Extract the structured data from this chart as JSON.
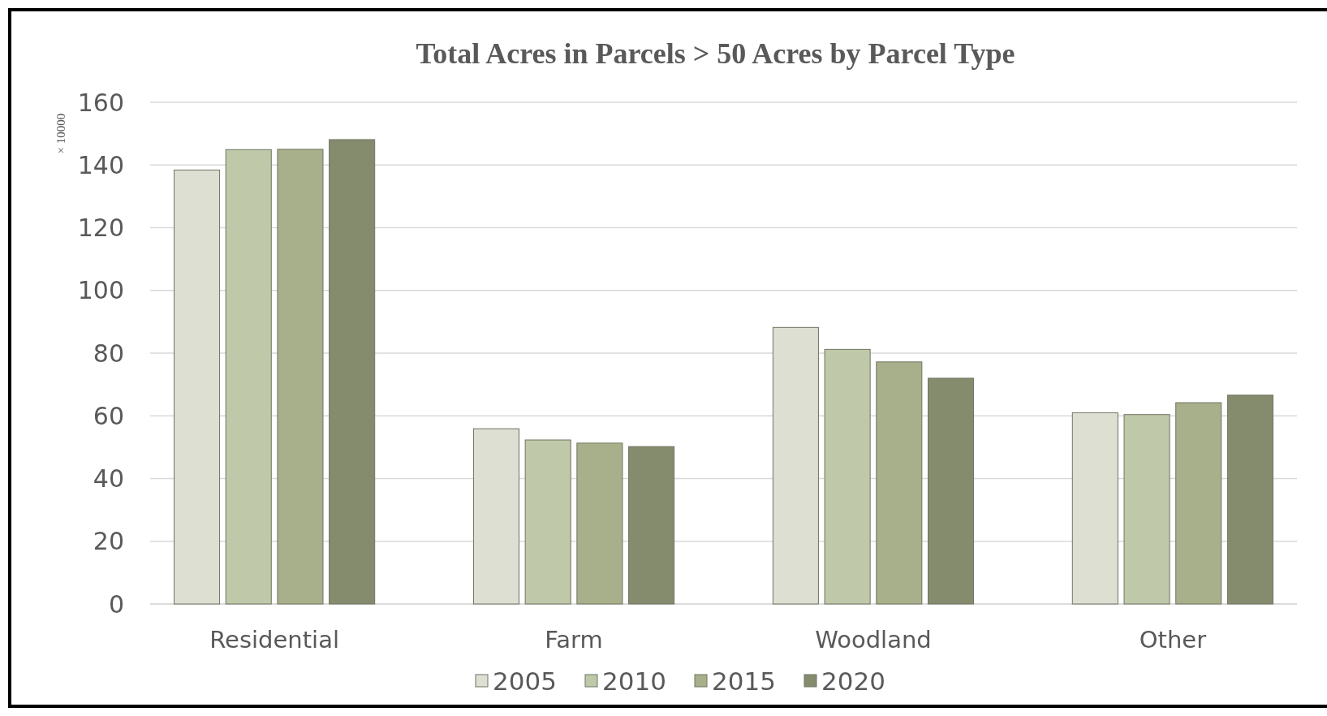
{
  "chart_data": {
    "type": "bar",
    "title": "Total Acres in Parcels > 50 Acres by Parcel Type",
    "ylabel": "× 10000",
    "categories": [
      "Residential",
      "Farm",
      "Woodland",
      "Other"
    ],
    "series": [
      {
        "name": "2005",
        "color": "#dcdfd2",
        "values": [
          138.4,
          55.9,
          88.2,
          61
        ]
      },
      {
        "name": "2010",
        "color": "#bfc8a8",
        "values": [
          144.9,
          52.3,
          81.2,
          60.4
        ]
      },
      {
        "name": "2015",
        "color": "#a7b08a",
        "values": [
          145,
          51.3,
          77.2,
          64.2
        ]
      },
      {
        "name": "2020",
        "color": "#858c6e",
        "values": [
          148.1,
          50.2,
          72,
          66.6
        ]
      }
    ],
    "ylim": [
      0,
      160
    ],
    "yticks": [
      0,
      20,
      40,
      60,
      80,
      100,
      120,
      140,
      160
    ],
    "grid": "y",
    "legend": "bottom"
  }
}
